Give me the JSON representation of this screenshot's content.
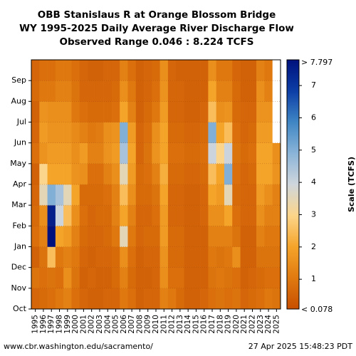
{
  "chart_data": {
    "type": "heatmap",
    "title_lines": [
      "OBB Stanislaus R at Orange Blossom Bridge",
      "WY 1995-2025 Daily Average River Discharge Flow",
      "Observed Range 0.046 : 8.224 TCFS"
    ],
    "x_categories": [
      "1995",
      "1996",
      "1997",
      "1998",
      "1999",
      "2000",
      "2001",
      "2002",
      "2003",
      "2004",
      "2005",
      "2006",
      "2007",
      "2008",
      "2009",
      "2010",
      "2011",
      "2012",
      "2013",
      "2014",
      "2015",
      "2016",
      "2017",
      "2018",
      "2019",
      "2020",
      "2021",
      "2022",
      "2023",
      "2024",
      "2025"
    ],
    "y_categories": [
      "Oct",
      "Nov",
      "Dec",
      "Jan",
      "Feb",
      "Mar",
      "Apr",
      "May",
      "Jun",
      "Jul",
      "Aug",
      "Sep"
    ],
    "month_values": [
      [
        0.6,
        0.9,
        0.5,
        0.8,
        0.7,
        0.6,
        0.5,
        0.8,
        0.6,
        0.5,
        0.7,
        0.6
      ],
      [
        0.7,
        0.8,
        0.9,
        1.2,
        1.5,
        3.5,
        3.0,
        1.6,
        1.8,
        1.6,
        1.0,
        0.8
      ],
      [
        0.8,
        0.9,
        2.5,
        7.8,
        7.5,
        5.0,
        2.0,
        1.8,
        1.6,
        1.5,
        1.0,
        0.8
      ],
      [
        1.0,
        0.8,
        1.0,
        2.0,
        4.0,
        4.5,
        2.0,
        1.8,
        1.6,
        1.5,
        1.2,
        1.0
      ],
      [
        1.2,
        1.5,
        1.2,
        1.8,
        2.5,
        3.5,
        2.0,
        1.8,
        1.6,
        1.5,
        1.2,
        1.0
      ],
      [
        0.8,
        0.9,
        1.0,
        1.2,
        1.5,
        2.0,
        1.6,
        1.5,
        1.4,
        1.0,
        0.9,
        0.8
      ],
      [
        0.6,
        0.5,
        0.6,
        0.7,
        0.8,
        0.7,
        1.5,
        1.8,
        1.2,
        0.8,
        0.6,
        0.6
      ],
      [
        0.5,
        0.6,
        0.5,
        0.6,
        0.6,
        0.7,
        0.8,
        1.2,
        1.0,
        0.7,
        0.6,
        0.5
      ],
      [
        0.5,
        0.5,
        0.6,
        0.6,
        0.7,
        0.7,
        0.8,
        1.2,
        1.1,
        0.7,
        0.6,
        0.5
      ],
      [
        0.6,
        0.5,
        0.6,
        0.7,
        0.7,
        0.8,
        1.2,
        1.6,
        1.5,
        0.7,
        0.6,
        0.6
      ],
      [
        0.6,
        0.7,
        0.7,
        1.0,
        1.2,
        1.2,
        1.5,
        1.8,
        1.6,
        0.8,
        0.7,
        0.6
      ],
      [
        1.0,
        1.2,
        1.5,
        3.5,
        2.0,
        2.5,
        3.5,
        4.5,
        5.0,
        2.0,
        1.5,
        1.2
      ],
      [
        0.8,
        0.7,
        0.8,
        1.0,
        1.2,
        1.5,
        1.8,
        2.0,
        1.8,
        1.2,
        1.0,
        0.8
      ],
      [
        0.5,
        0.5,
        0.5,
        0.6,
        0.6,
        0.7,
        0.7,
        0.6,
        0.6,
        0.5,
        0.5,
        0.5
      ],
      [
        0.6,
        0.5,
        0.6,
        0.7,
        0.6,
        0.7,
        0.8,
        0.9,
        0.8,
        0.7,
        0.6,
        0.6
      ],
      [
        0.6,
        0.6,
        0.6,
        0.7,
        0.8,
        0.9,
        1.2,
        1.6,
        1.5,
        1.0,
        0.8,
        0.7
      ],
      [
        1.2,
        1.5,
        1.6,
        1.8,
        1.8,
        2.0,
        2.2,
        2.0,
        2.0,
        1.8,
        1.6,
        1.5
      ],
      [
        1.0,
        0.8,
        0.7,
        0.7,
        0.6,
        0.6,
        0.7,
        0.8,
        0.7,
        0.6,
        0.6,
        0.6
      ],
      [
        0.7,
        0.8,
        0.7,
        0.7,
        0.6,
        0.6,
        0.7,
        0.8,
        0.7,
        0.6,
        0.6,
        0.5
      ],
      [
        0.5,
        0.5,
        0.5,
        0.5,
        0.5,
        0.5,
        0.6,
        0.7,
        0.6,
        0.5,
        0.5,
        0.5
      ],
      [
        0.5,
        0.5,
        0.5,
        0.5,
        0.5,
        0.5,
        0.6,
        0.7,
        0.6,
        0.5,
        0.5,
        0.5
      ],
      [
        0.6,
        0.5,
        0.5,
        0.5,
        0.6,
        0.6,
        0.7,
        0.8,
        0.7,
        0.6,
        0.5,
        0.5
      ],
      [
        0.8,
        0.9,
        1.0,
        1.2,
        1.5,
        2.0,
        2.5,
        4.0,
        5.0,
        2.5,
        2.0,
        1.5
      ],
      [
        0.9,
        1.0,
        0.9,
        1.2,
        1.5,
        1.8,
        2.0,
        3.0,
        2.0,
        1.5,
        1.2,
        1.0
      ],
      [
        0.8,
        0.9,
        1.0,
        1.2,
        2.0,
        3.5,
        5.0,
        4.0,
        2.5,
        1.6,
        1.2,
        1.0
      ],
      [
        0.9,
        0.8,
        1.5,
        0.9,
        0.8,
        0.7,
        0.8,
        0.9,
        0.8,
        0.7,
        0.7,
        0.6
      ],
      [
        0.6,
        0.5,
        0.5,
        0.5,
        0.6,
        0.6,
        0.6,
        0.7,
        0.6,
        0.6,
        0.5,
        0.5
      ],
      [
        0.7,
        0.6,
        0.5,
        0.5,
        0.6,
        0.6,
        0.7,
        0.8,
        0.7,
        0.6,
        0.5,
        0.5
      ],
      [
        0.8,
        0.7,
        0.9,
        1.2,
        1.5,
        1.8,
        2.0,
        2.0,
        1.8,
        1.6,
        1.5,
        1.2
      ],
      [
        1.0,
        0.8,
        0.9,
        1.0,
        1.2,
        1.5,
        2.0,
        2.0,
        1.8,
        1.6,
        1.2,
        1.0
      ],
      [
        0.9,
        0.8,
        0.9,
        1.0,
        1.2,
        1.2,
        1.6,
        1.5,
        0,
        0,
        0,
        0
      ]
    ],
    "colorbar": {
      "title": "Scale (TCFS)",
      "ticks": [
        "1",
        "2",
        "3",
        "4",
        "5",
        "6",
        "7"
      ],
      "top_label": "> 7.797",
      "bottom_label": "< 0.078",
      "range": [
        0.078,
        7.797
      ]
    },
    "colors": [
      "#c84f00",
      "#e07a10",
      "#f5a42a",
      "#fcd58a",
      "#cfd6dc",
      "#8ab4d8",
      "#3f86c4",
      "#0c3ea6",
      "#00117d"
    ]
  },
  "footer": {
    "left": "www.cbr.washington.edu/sacramento/",
    "right": "27 Apr 2025 15:48:23 PDT"
  }
}
